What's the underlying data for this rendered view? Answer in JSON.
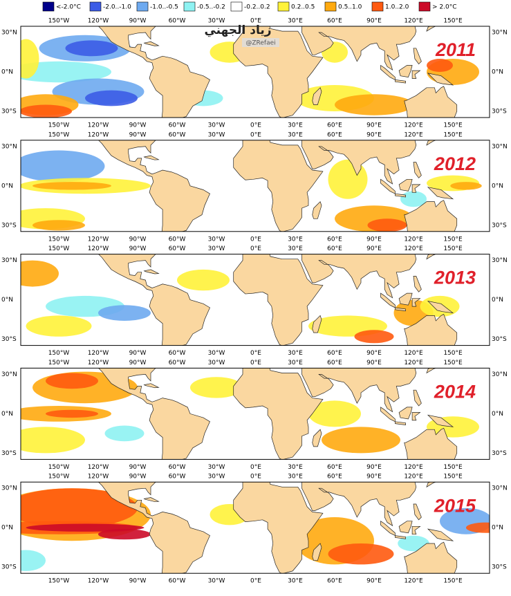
{
  "legend": [
    {
      "label": "<-2.0°C",
      "color": "#00008b"
    },
    {
      "label": "-2.0..-1.0",
      "color": "#3c5ce6"
    },
    {
      "label": "-1.0..-0.5",
      "color": "#6eaaf0"
    },
    {
      "label": "-0.5..-0.2",
      "color": "#8ef2f2"
    },
    {
      "label": "-0.2..0.2",
      "color": "#ffffff"
    },
    {
      "label": "0.2..0.5",
      "color": "#fff23a"
    },
    {
      "label": "0.5..1.0",
      "color": "#ffaa10"
    },
    {
      "label": "1.0..2.0",
      "color": "#ff5a10"
    },
    {
      "label": "> 2.0°C",
      "color": "#cc0a28"
    }
  ],
  "longitudes": [
    "150°W",
    "120°W",
    "90°W",
    "60°W",
    "30°W",
    "0°E",
    "30°E",
    "60°E",
    "90°E",
    "120°E",
    "150°E"
  ],
  "latitudes": [
    "30°N",
    "0°N",
    "30°S"
  ],
  "panels": [
    {
      "year": "2011"
    },
    {
      "year": "2012"
    },
    {
      "year": "2013"
    },
    {
      "year": "2014"
    },
    {
      "year": "2015"
    }
  ],
  "watermark": {
    "name": "زياد الجهني",
    "handle": "@ZRefaei"
  }
}
